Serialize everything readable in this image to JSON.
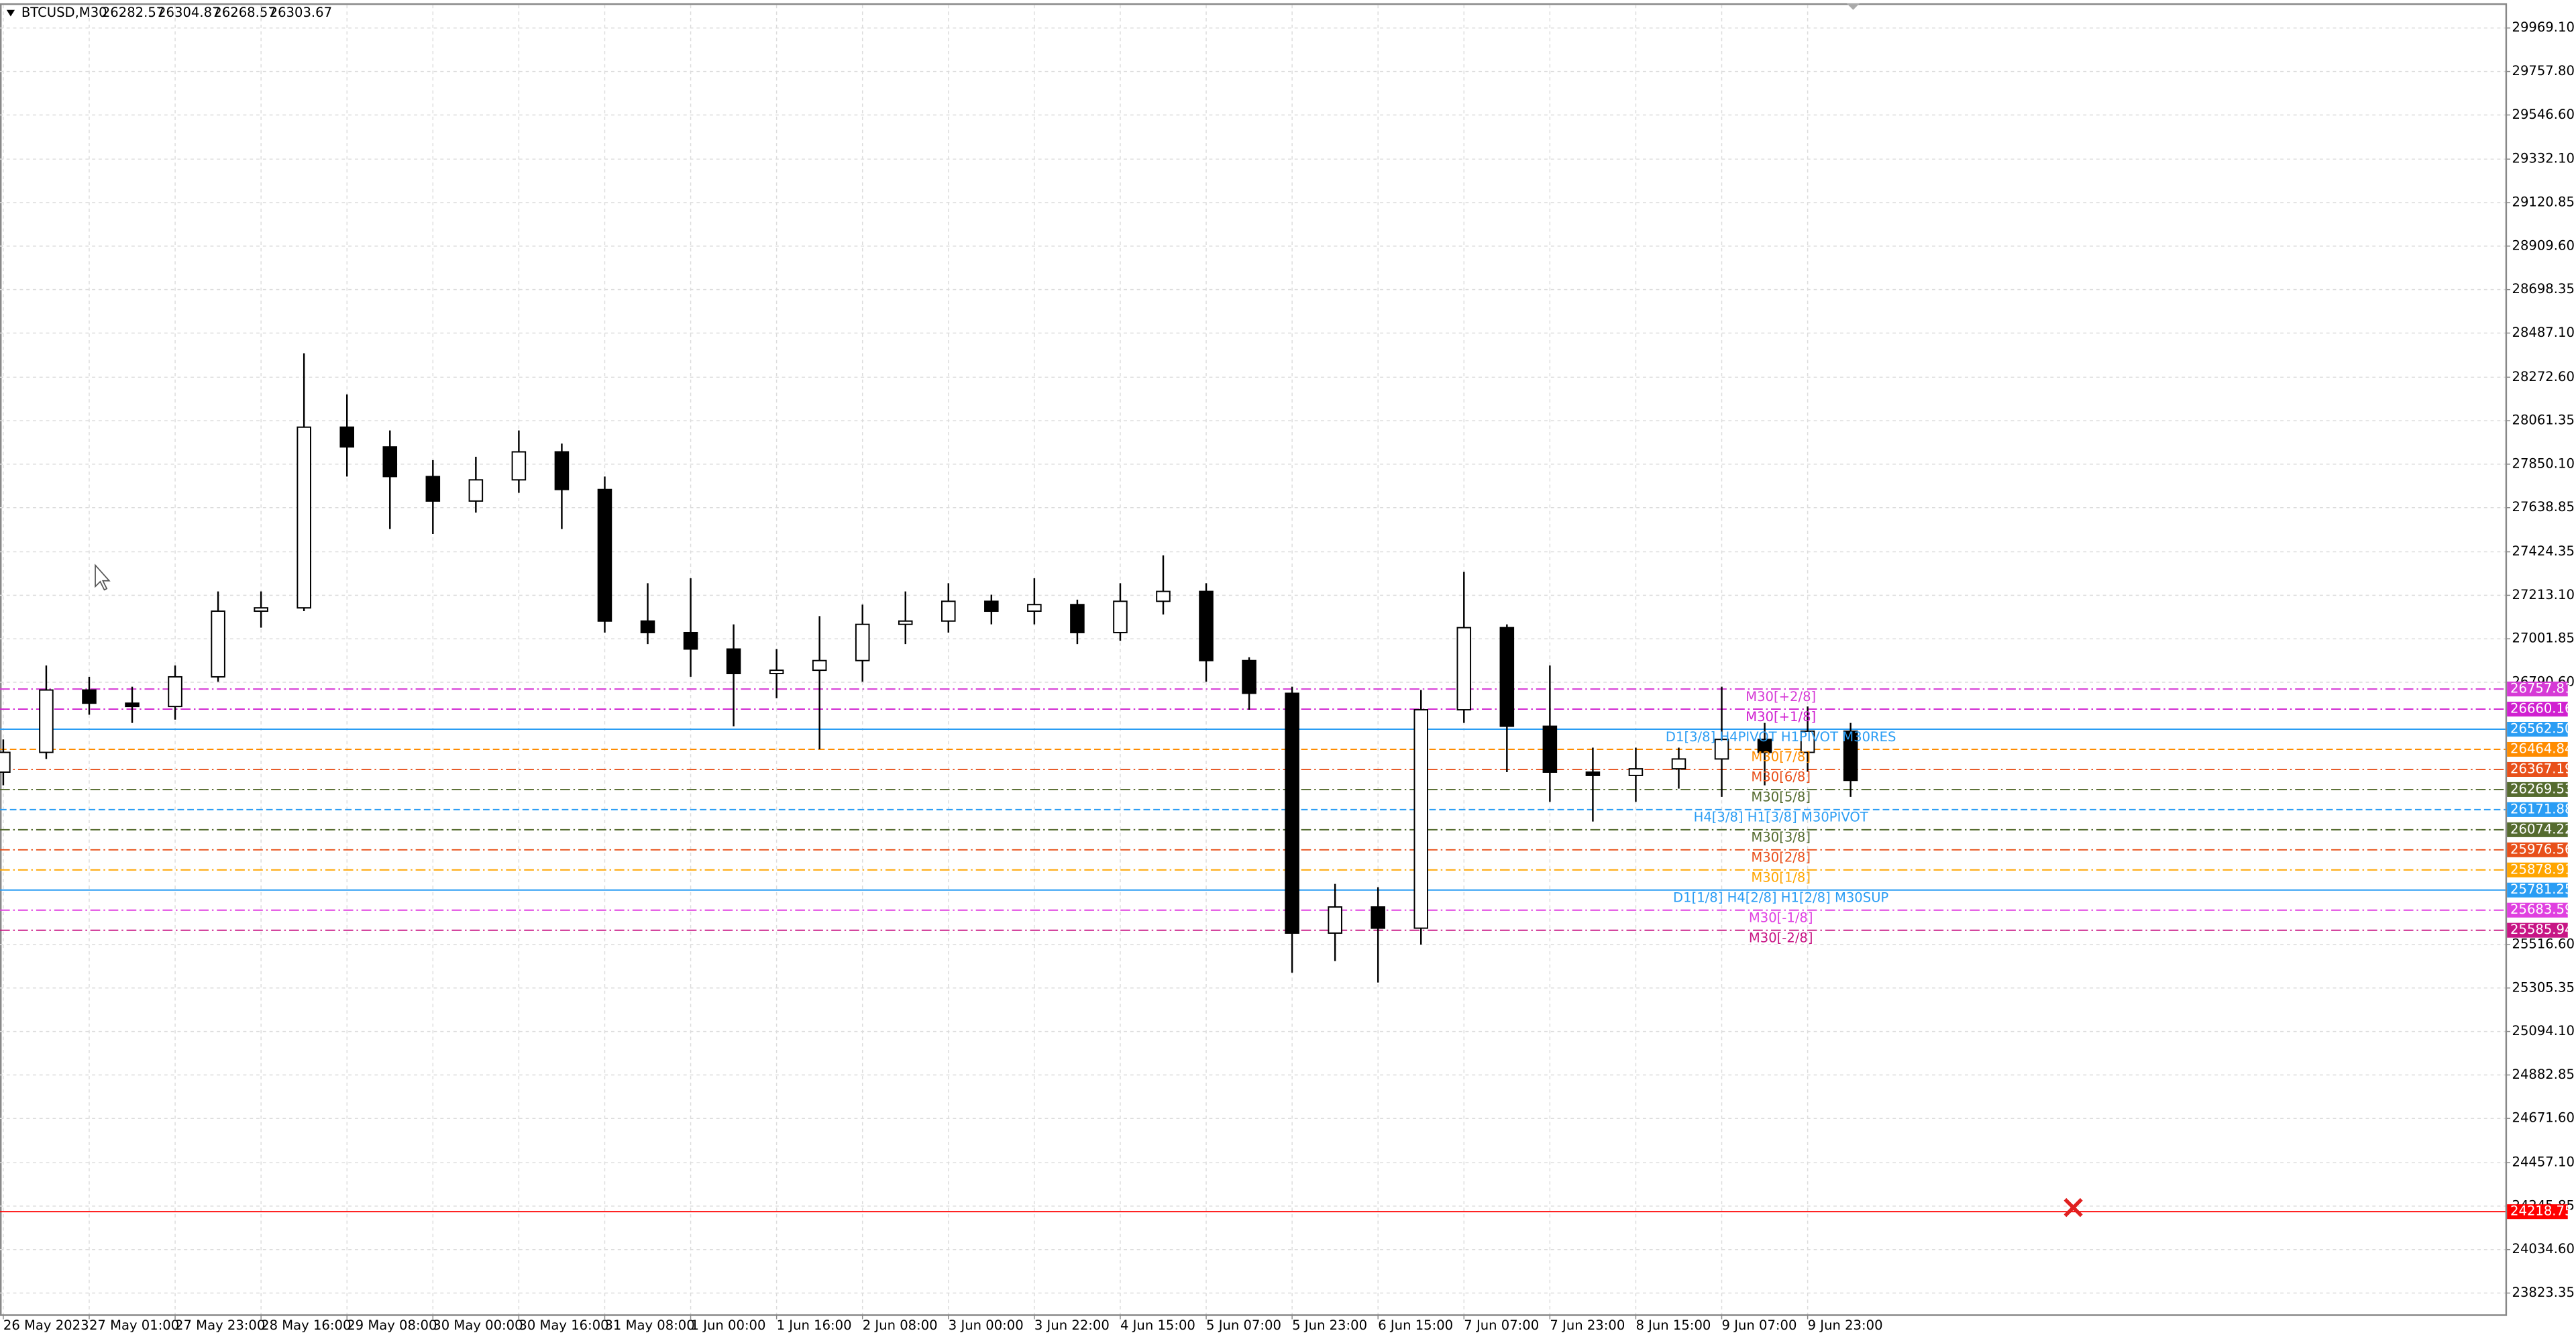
{
  "header": {
    "symbol": "BTCUSD,M30",
    "ohlc": [
      26282.57,
      26304.87,
      26268.57,
      26303.67
    ]
  },
  "chart_data": {
    "type": "candlestick",
    "categories": [
      "26 May 2023",
      null,
      "27 May 01:00",
      null,
      "27 May 23:00",
      null,
      "28 May 16:00",
      null,
      "29 May 08:00",
      null,
      "30 May 00:00",
      null,
      "30 May 16:00",
      null,
      "31 May 08:00",
      null,
      "1 Jun 00:00",
      null,
      "1 Jun 16:00",
      null,
      "2 Jun 08:00",
      null,
      "3 Jun 00:00",
      null,
      "3 Jun 22:00",
      null,
      "4 Jun 15:00",
      null,
      "5 Jun 07:00",
      null,
      "5 Jun 23:00",
      null,
      "6 Jun 15:00",
      null,
      "7 Jun 07:00",
      null,
      "7 Jun 23:00",
      null,
      "8 Jun 15:00",
      null,
      "9 Jun 07:00",
      null,
      "9 Jun 23:00",
      null
    ],
    "open": [
      26354,
      26450,
      26753,
      26689,
      26673,
      26817,
      27136,
      27152,
      28030,
      27934,
      27790,
      27671,
      27774,
      27910,
      27727,
      27088,
      27032,
      26952,
      26833,
      26849,
      26896,
      27072,
      27088,
      27184,
      27136,
      27168,
      27032,
      27184,
      27232,
      26896,
      26737,
      25572,
      25699,
      25596,
      26657,
      27056,
      26577,
      26354,
      26338,
      26370,
      26418,
      26513,
      26450,
      26553
    ],
    "high": [
      26513,
      26872,
      26817,
      26769,
      26872,
      27232,
      27232,
      28389,
      28189,
      28014,
      27870,
      27886,
      28014,
      27950,
      27790,
      27272,
      27296,
      27072,
      26952,
      27112,
      27168,
      27232,
      27272,
      27216,
      27296,
      27192,
      27272,
      27407,
      27272,
      26912,
      26769,
      25811,
      25795,
      26753,
      27327,
      27072,
      26872,
      26473,
      26473,
      26473,
      26769,
      26593,
      26673,
      26593
    ],
    "low": [
      26290,
      26418,
      26633,
      26593,
      26609,
      26793,
      27056,
      27136,
      27790,
      27535,
      27511,
      27615,
      27711,
      27535,
      27032,
      26976,
      26817,
      26577,
      26713,
      26465,
      26793,
      26976,
      27032,
      27072,
      27072,
      26976,
      26992,
      27120,
      26793,
      26657,
      25380,
      25436,
      25332,
      25516,
      26593,
      26354,
      26210,
      26114,
      26210,
      26274,
      26234,
      26290,
      26354,
      26234
    ],
    "close": [
      26450,
      26753,
      26689,
      26673,
      26817,
      27136,
      27152,
      28030,
      27934,
      27790,
      27671,
      27774,
      27910,
      27727,
      27088,
      27032,
      26952,
      26833,
      26849,
      26896,
      27072,
      27088,
      27184,
      27136,
      27168,
      27032,
      27184,
      27232,
      26896,
      26737,
      25572,
      25699,
      25596,
      26657,
      27056,
      26577,
      26354,
      26338,
      26370,
      26418,
      26513,
      26450,
      26553,
      26314
    ],
    "up_color": "#ffffff",
    "down_color": "#000000",
    "wick_color": "#000000",
    "ylim": [
      23720,
      30105
    ],
    "yticks": [
      {
        "value": 29969.1,
        "label": "29969.10"
      },
      {
        "value": 29757.8,
        "label": "29757.80"
      },
      {
        "value": 29546.6,
        "label": "29546.60"
      },
      {
        "value": 29332.1,
        "label": "29332.10"
      },
      {
        "value": 29120.85,
        "label": "29120.85"
      },
      {
        "value": 28909.6,
        "label": "28909.60"
      },
      {
        "value": 28698.35,
        "label": "28698.35"
      },
      {
        "value": 28487.1,
        "label": "28487.10"
      },
      {
        "value": 28272.6,
        "label": "28272.60"
      },
      {
        "value": 28061.35,
        "label": "28061.35"
      },
      {
        "value": 27850.1,
        "label": "27850.10"
      },
      {
        "value": 27638.85,
        "label": "27638.85"
      },
      {
        "value": 27424.35,
        "label": "27424.35"
      },
      {
        "value": 27213.1,
        "label": "27213.10"
      },
      {
        "value": 27001.85,
        "label": "27001.85"
      },
      {
        "value": 26790.6,
        "label": "26790.60"
      },
      {
        "value": 25516.6,
        "label": "25516.60"
      },
      {
        "value": 25305.35,
        "label": "25305.35"
      },
      {
        "value": 25094.1,
        "label": "25094.10"
      },
      {
        "value": 24882.85,
        "label": "24882.85"
      },
      {
        "value": 24671.6,
        "label": "24671.60"
      },
      {
        "value": 24457.1,
        "label": "24457.10"
      },
      {
        "value": 24245.85,
        "label": "24245.85"
      },
      {
        "value": 24034.6,
        "label": "24034.60"
      },
      {
        "value": 23823.35,
        "label": "23823.35"
      }
    ],
    "grid": true,
    "levels": [
      {
        "value": 26757.81,
        "label": "M30[+2/8]",
        "color": "#d63ad6",
        "style": "dashdot"
      },
      {
        "value": 26660.16,
        "label": "M30[+1/8]",
        "color": "#d020d0",
        "style": "dashdot"
      },
      {
        "value": 26562.5,
        "value_label": "26562.50",
        "label": "D1[3/8] H4PIVOT H1PIVOT M30RES",
        "color": "#2a9df4",
        "style": "solid"
      },
      {
        "value": 26464.84,
        "label": "M30[7/8]",
        "color": "#ff8c00",
        "style": "dash"
      },
      {
        "value": 26367.19,
        "label": "M30[6/8]",
        "color": "#e8501a",
        "style": "dashdot"
      },
      {
        "value": 26269.53,
        "label": "M30[5/8]",
        "color": "#556b2f",
        "style": "dashdot"
      },
      {
        "value": 26171.88,
        "label": "H4[3/8] H1[3/8] M30PIVOT",
        "color": "#2a9df4",
        "style": "dash"
      },
      {
        "value": 26074.22,
        "label": "M30[3/8]",
        "color": "#556b2f",
        "style": "dashdot"
      },
      {
        "value": 25976.56,
        "label": "M30[2/8]",
        "color": "#e8501a",
        "style": "dashdot"
      },
      {
        "value": 25878.91,
        "label": "M30[1/8]",
        "color": "#ffa500",
        "style": "dashdot"
      },
      {
        "value": 25781.25,
        "label": "D1[1/8] H4[2/8] H1[2/8] M30SUP",
        "color": "#2a9df4",
        "style": "solid"
      },
      {
        "value": 25683.59,
        "label": "M30[-1/8]",
        "color": "#e040e0",
        "style": "dashdot"
      },
      {
        "value": 25585.94,
        "label": "M30[-2/8]",
        "color": "#c71585",
        "style": "dashdot"
      },
      {
        "value": 24218.75,
        "color": "#ff0000",
        "style": "solid"
      }
    ]
  }
}
